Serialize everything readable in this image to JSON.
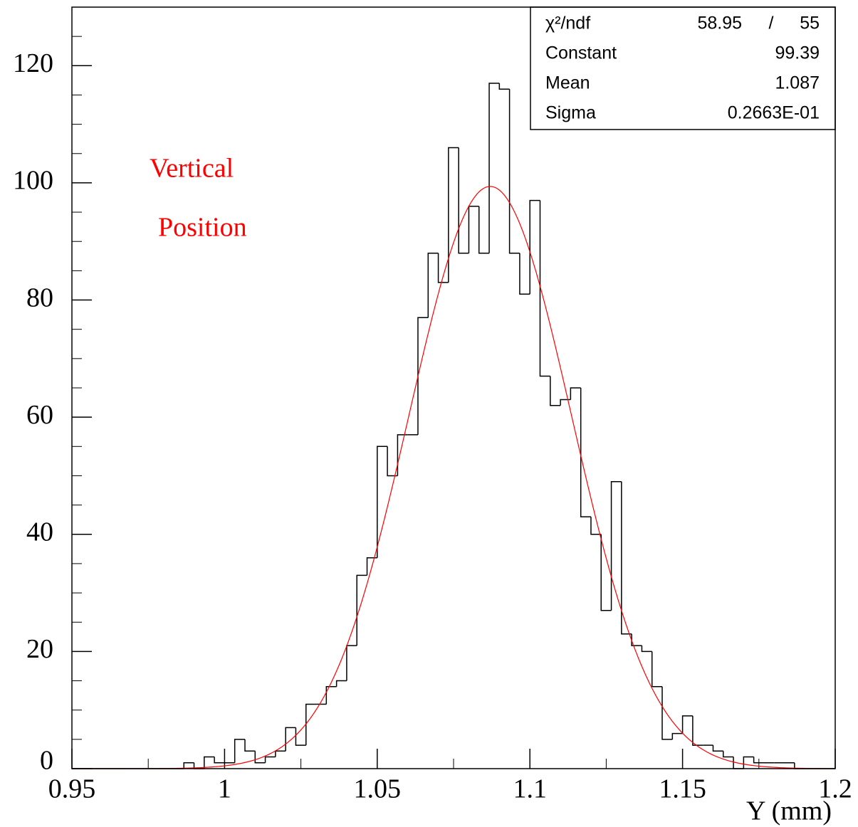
{
  "chart_data": {
    "type": "histogram",
    "xlabel": "Y (mm)",
    "annotations": [
      {
        "text": "Vertical",
        "color": "#ff0000"
      },
      {
        "text": "Position",
        "color": "#ff0000"
      }
    ],
    "color": "#000000",
    "bins": [
      0.95,
      0.95333,
      0.95667,
      0.96,
      0.96333,
      0.96667,
      0.97,
      0.97333,
      0.97667,
      0.98,
      0.98333,
      0.98667,
      0.99,
      0.99333,
      0.99667,
      1.0,
      1.00333,
      1.00667,
      1.01,
      1.01333,
      1.01667,
      1.02,
      1.02333,
      1.02667,
      1.03,
      1.03333,
      1.03667,
      1.04,
      1.04333,
      1.04667,
      1.05,
      1.05333,
      1.05667,
      1.06,
      1.06333,
      1.06667,
      1.07,
      1.07333,
      1.07667,
      1.08,
      1.08333,
      1.08667,
      1.09,
      1.09333,
      1.09667,
      1.1,
      1.10333,
      1.10667,
      1.11,
      1.11333,
      1.11667,
      1.12,
      1.12333,
      1.12667,
      1.13,
      1.13333,
      1.13667,
      1.14,
      1.14333,
      1.14667,
      1.15,
      1.15333,
      1.15667,
      1.16,
      1.16333,
      1.16667,
      1.17,
      1.17333,
      1.17667,
      1.18,
      1.18333,
      1.18667,
      1.19,
      1.19333,
      1.19667,
      1.2
    ],
    "values": [
      0,
      0,
      0,
      0,
      0,
      0,
      0,
      0,
      0,
      0,
      0,
      1,
      0,
      2,
      1,
      1,
      5,
      3,
      1,
      2,
      3,
      7,
      4,
      11,
      11,
      14,
      15,
      21,
      33,
      36,
      55,
      50,
      57,
      57,
      77,
      88,
      83,
      106,
      88,
      96,
      88,
      117,
      116,
      88,
      81,
      97,
      67,
      62,
      63,
      65,
      43,
      40,
      27,
      49,
      23,
      21,
      20,
      14,
      5,
      6,
      9,
      4,
      4,
      3,
      2,
      0,
      2,
      1,
      1,
      1,
      1,
      0,
      0,
      0,
      0
    ],
    "xlim": [
      0.95,
      1.2
    ],
    "xticks": [
      0.95,
      1,
      1.05,
      1.1,
      1.15,
      1.2
    ],
    "xminorticks": [
      0.975,
      1.025,
      1.075,
      1.125,
      1.175
    ],
    "ylim": [
      0,
      130
    ],
    "yticks": [
      0,
      20,
      40,
      60,
      80,
      100,
      120
    ],
    "yminorticks": [
      5,
      10,
      15,
      25,
      30,
      35,
      45,
      50,
      55,
      65,
      70,
      75,
      85,
      90,
      95,
      105,
      110,
      115,
      125
    ],
    "fit": {
      "color": "#ff0000",
      "chi2_label": "χ²/ndf",
      "chi2": 58.95,
      "separator": "/",
      "ndf": 55,
      "params": [
        {
          "name": "Constant",
          "value": 99.39
        },
        {
          "name": "Mean",
          "value": 1.087
        },
        {
          "name": "Sigma",
          "value": 0.02663,
          "label": "0.2663E-01"
        }
      ]
    }
  }
}
